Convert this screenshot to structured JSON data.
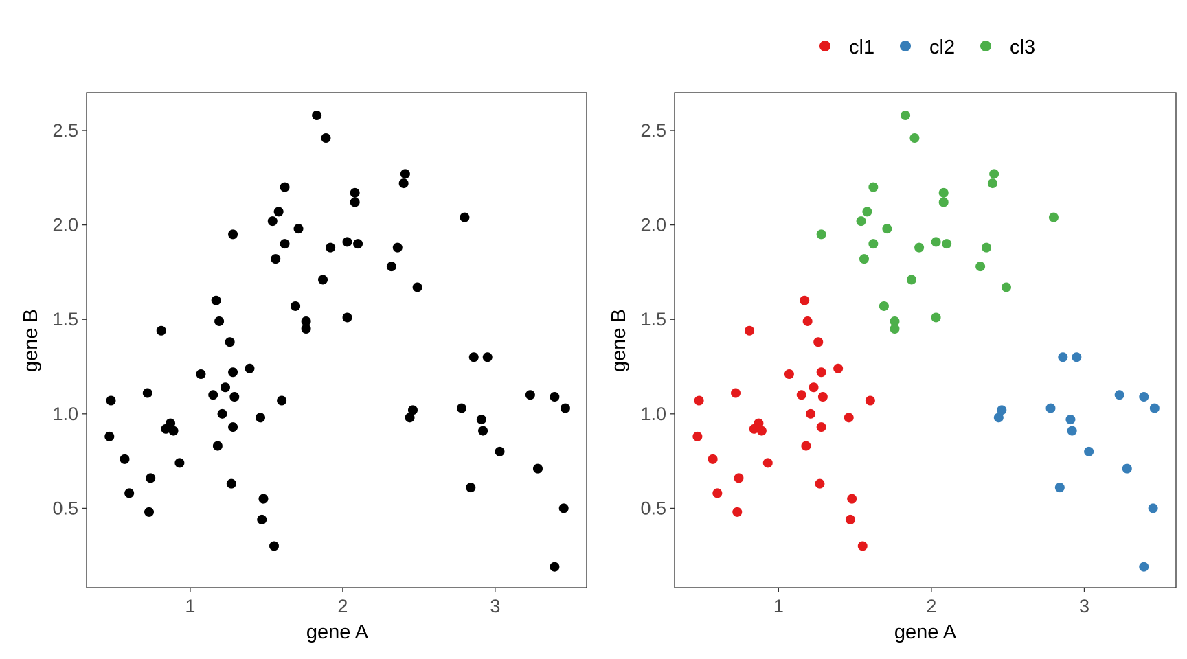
{
  "chart_data": [
    {
      "type": "scatter",
      "xlabel": "gene A",
      "ylabel": "gene B",
      "xlim": [
        0.32,
        3.6
      ],
      "ylim": [
        0.08,
        2.7
      ],
      "xticks": [
        1,
        2,
        3
      ],
      "xtick_labels": [
        "1",
        "2",
        "3"
      ],
      "yticks": [
        0.5,
        1.0,
        1.5,
        2.0,
        2.5
      ],
      "ytick_labels": [
        "0.5",
        "1.0",
        "1.5",
        "2.0",
        "2.5"
      ],
      "grid": false,
      "point_color": "#000000",
      "series": [
        {
          "points": [
            [
              0.47,
              0.88
            ],
            [
              0.48,
              1.07
            ],
            [
              0.57,
              0.76
            ],
            [
              0.6,
              0.58
            ],
            [
              0.72,
              1.11
            ],
            [
              0.73,
              0.48
            ],
            [
              0.74,
              0.66
            ],
            [
              0.81,
              1.44
            ],
            [
              0.84,
              0.92
            ],
            [
              0.87,
              0.95
            ],
            [
              0.89,
              0.91
            ],
            [
              0.93,
              0.74
            ],
            [
              1.07,
              1.21
            ],
            [
              1.15,
              1.1
            ],
            [
              1.17,
              1.6
            ],
            [
              1.18,
              0.83
            ],
            [
              1.19,
              1.49
            ],
            [
              1.21,
              1.0
            ],
            [
              1.23,
              1.14
            ],
            [
              1.26,
              1.38
            ],
            [
              1.27,
              0.63
            ],
            [
              1.28,
              0.93
            ],
            [
              1.28,
              1.22
            ],
            [
              1.29,
              1.09
            ],
            [
              1.28,
              1.95
            ],
            [
              1.39,
              1.24
            ],
            [
              1.46,
              0.98
            ],
            [
              1.47,
              0.44
            ],
            [
              1.48,
              0.55
            ],
            [
              1.55,
              0.3
            ],
            [
              1.6,
              1.07
            ],
            [
              1.54,
              2.02
            ],
            [
              1.56,
              1.82
            ],
            [
              1.58,
              2.07
            ],
            [
              1.62,
              2.2
            ],
            [
              1.62,
              1.9
            ],
            [
              1.69,
              1.57
            ],
            [
              1.71,
              1.98
            ],
            [
              1.76,
              1.49
            ],
            [
              1.76,
              1.45
            ],
            [
              1.83,
              2.58
            ],
            [
              1.87,
              1.71
            ],
            [
              1.89,
              2.46
            ],
            [
              1.92,
              1.88
            ],
            [
              2.03,
              1.91
            ],
            [
              2.03,
              1.51
            ],
            [
              2.08,
              2.17
            ],
            [
              2.08,
              2.12
            ],
            [
              2.1,
              1.9
            ],
            [
              2.32,
              1.78
            ],
            [
              2.36,
              1.88
            ],
            [
              2.4,
              2.22
            ],
            [
              2.41,
              2.27
            ],
            [
              2.49,
              1.67
            ],
            [
              2.8,
              2.04
            ],
            [
              2.44,
              0.98
            ],
            [
              2.46,
              1.02
            ],
            [
              2.78,
              1.03
            ],
            [
              2.84,
              0.61
            ],
            [
              2.86,
              1.3
            ],
            [
              2.91,
              0.97
            ],
            [
              2.92,
              0.91
            ],
            [
              2.95,
              1.3
            ],
            [
              3.03,
              0.8
            ],
            [
              3.23,
              1.1
            ],
            [
              3.28,
              0.71
            ],
            [
              3.39,
              1.09
            ],
            [
              3.39,
              0.19
            ],
            [
              3.45,
              0.5
            ],
            [
              3.46,
              1.03
            ]
          ]
        }
      ]
    },
    {
      "type": "scatter",
      "xlabel": "gene A",
      "ylabel": "gene B",
      "xlim": [
        0.32,
        3.6
      ],
      "ylim": [
        0.08,
        2.7
      ],
      "xticks": [
        1,
        2,
        3
      ],
      "xtick_labels": [
        "1",
        "2",
        "3"
      ],
      "yticks": [
        0.5,
        1.0,
        1.5,
        2.0,
        2.5
      ],
      "ytick_labels": [
        "0.5",
        "1.0",
        "1.5",
        "2.0",
        "2.5"
      ],
      "grid": false,
      "legend_position": "top-right",
      "series": [
        {
          "name": "cl1",
          "color": "#e41a1c",
          "points": [
            [
              0.47,
              0.88
            ],
            [
              0.48,
              1.07
            ],
            [
              0.57,
              0.76
            ],
            [
              0.6,
              0.58
            ],
            [
              0.72,
              1.11
            ],
            [
              0.73,
              0.48
            ],
            [
              0.74,
              0.66
            ],
            [
              0.81,
              1.44
            ],
            [
              0.84,
              0.92
            ],
            [
              0.87,
              0.95
            ],
            [
              0.89,
              0.91
            ],
            [
              0.93,
              0.74
            ],
            [
              1.07,
              1.21
            ],
            [
              1.15,
              1.1
            ],
            [
              1.17,
              1.6
            ],
            [
              1.18,
              0.83
            ],
            [
              1.19,
              1.49
            ],
            [
              1.21,
              1.0
            ],
            [
              1.23,
              1.14
            ],
            [
              1.26,
              1.38
            ],
            [
              1.27,
              0.63
            ],
            [
              1.28,
              0.93
            ],
            [
              1.28,
              1.22
            ],
            [
              1.29,
              1.09
            ],
            [
              1.39,
              1.24
            ],
            [
              1.46,
              0.98
            ],
            [
              1.47,
              0.44
            ],
            [
              1.48,
              0.55
            ],
            [
              1.55,
              0.3
            ],
            [
              1.6,
              1.07
            ]
          ]
        },
        {
          "name": "cl2",
          "color": "#377eb8",
          "points": [
            [
              2.44,
              0.98
            ],
            [
              2.46,
              1.02
            ],
            [
              2.78,
              1.03
            ],
            [
              2.84,
              0.61
            ],
            [
              2.86,
              1.3
            ],
            [
              2.91,
              0.97
            ],
            [
              2.92,
              0.91
            ],
            [
              2.95,
              1.3
            ],
            [
              3.03,
              0.8
            ],
            [
              3.23,
              1.1
            ],
            [
              3.28,
              0.71
            ],
            [
              3.39,
              1.09
            ],
            [
              3.39,
              0.19
            ],
            [
              3.45,
              0.5
            ],
            [
              3.46,
              1.03
            ]
          ]
        },
        {
          "name": "cl3",
          "color": "#4daf4a",
          "points": [
            [
              1.28,
              1.95
            ],
            [
              1.54,
              2.02
            ],
            [
              1.56,
              1.82
            ],
            [
              1.58,
              2.07
            ],
            [
              1.62,
              2.2
            ],
            [
              1.62,
              1.9
            ],
            [
              1.69,
              1.57
            ],
            [
              1.71,
              1.98
            ],
            [
              1.76,
              1.49
            ],
            [
              1.76,
              1.45
            ],
            [
              1.83,
              2.58
            ],
            [
              1.87,
              1.71
            ],
            [
              1.89,
              2.46
            ],
            [
              1.92,
              1.88
            ],
            [
              2.03,
              1.91
            ],
            [
              2.03,
              1.51
            ],
            [
              2.08,
              2.17
            ],
            [
              2.08,
              2.12
            ],
            [
              2.1,
              1.9
            ],
            [
              2.32,
              1.78
            ],
            [
              2.36,
              1.88
            ],
            [
              2.4,
              2.22
            ],
            [
              2.41,
              2.27
            ],
            [
              2.49,
              1.67
            ],
            [
              2.8,
              2.04
            ]
          ]
        }
      ]
    }
  ]
}
